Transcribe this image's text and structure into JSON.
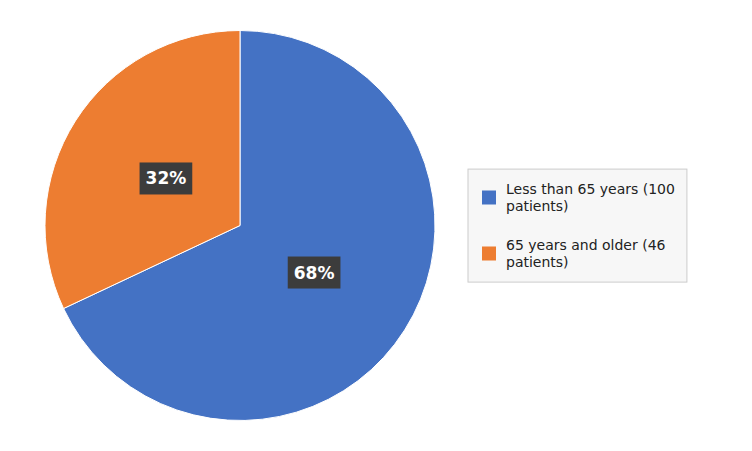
{
  "chart_data": {
    "type": "pie",
    "categories": [
      "Less than 65 years (100\npatients)",
      "65 years and older (46\npatients)"
    ],
    "values": [
      68,
      32
    ],
    "value_labels": [
      "68%",
      "32%"
    ],
    "colors": [
      "#4472C4",
      "#ED7D31"
    ],
    "data_labels": true,
    "legend": "right"
  }
}
